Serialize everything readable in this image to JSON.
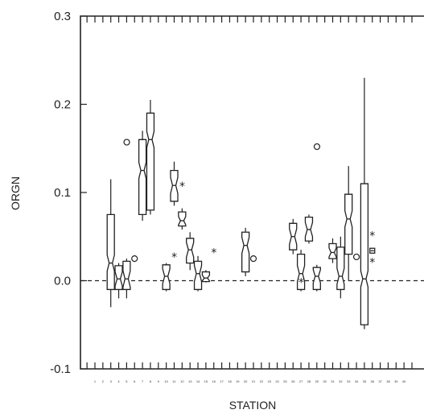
{
  "chart_data": {
    "type": "box",
    "xlabel": "STATION",
    "ylabel": "ORGN",
    "ylim": [
      -0.1,
      0.3
    ],
    "yticks": [
      -0.1,
      0.0,
      0.1,
      0.2,
      0.3
    ],
    "ytick_labels": [
      "-0.1",
      "0.0",
      "0.1",
      "0.2",
      "0.3"
    ],
    "zero_reference_line": true,
    "stations": [
      "1",
      "2",
      "3",
      "4",
      "5",
      "6",
      "7",
      "8",
      "9",
      "10",
      "11",
      "12",
      "13",
      "14",
      "15",
      "16",
      "17",
      "18",
      "19",
      "20",
      "21",
      "22",
      "23",
      "24",
      "25",
      "26",
      "27",
      "28",
      "29",
      "30",
      "31",
      "32",
      "33",
      "34",
      "35",
      "36",
      "37",
      "38",
      "39",
      "40"
    ],
    "boxes": [
      {
        "station": "3",
        "whisker_low": -0.03,
        "q1": -0.01,
        "median": 0.02,
        "q3": 0.075,
        "whisker_high": 0.115
      },
      {
        "station": "4",
        "whisker_low": -0.02,
        "q1": -0.01,
        "median": 0.002,
        "q3": 0.017,
        "whisker_high": 0.02,
        "outliers": [
          {
            "value": 0.157,
            "marker": "circle"
          }
        ]
      },
      {
        "station": "5",
        "whisker_low": -0.02,
        "q1": -0.01,
        "median": 0.002,
        "q3": 0.022,
        "whisker_high": 0.025
      },
      {
        "station": "6",
        "outliers": [
          {
            "value": 0.025,
            "marker": "circle"
          }
        ]
      },
      {
        "station": "7",
        "whisker_low": 0.068,
        "q1": 0.075,
        "median": 0.125,
        "q3": 0.16,
        "whisker_high": 0.17
      },
      {
        "station": "8",
        "whisker_low": 0.075,
        "q1": 0.08,
        "median": 0.16,
        "q3": 0.19,
        "whisker_high": 0.205
      },
      {
        "station": "10",
        "whisker_low": -0.012,
        "q1": -0.01,
        "median": 0.005,
        "q3": 0.018,
        "whisker_high": 0.02,
        "outliers": [
          {
            "value": 0.028,
            "marker": "star"
          }
        ]
      },
      {
        "station": "11",
        "whisker_low": 0.085,
        "q1": 0.09,
        "median": 0.108,
        "q3": 0.125,
        "whisker_high": 0.135,
        "outliers": [
          {
            "value": 0.108,
            "marker": "star"
          }
        ]
      },
      {
        "station": "12",
        "whisker_low": 0.058,
        "q1": 0.062,
        "median": 0.068,
        "q3": 0.078,
        "whisker_high": 0.082
      },
      {
        "station": "13",
        "whisker_low": 0.012,
        "q1": 0.02,
        "median": 0.035,
        "q3": 0.048,
        "whisker_high": 0.055
      },
      {
        "station": "14",
        "whisker_low": -0.012,
        "q1": -0.01,
        "median": 0.008,
        "q3": 0.022,
        "whisker_high": 0.028
      },
      {
        "station": "15",
        "whisker_low": -0.002,
        "q1": -0.001,
        "median": 0.003,
        "q3": 0.01,
        "whisker_high": 0.012,
        "outliers": [
          {
            "value": 0.033,
            "marker": "star"
          }
        ]
      },
      {
        "station": "20",
        "whisker_low": 0.005,
        "q1": 0.01,
        "median": 0.04,
        "q3": 0.055,
        "whisker_high": 0.06
      },
      {
        "station": "21",
        "outliers": [
          {
            "value": 0.025,
            "marker": "circle"
          }
        ]
      },
      {
        "station": "26",
        "whisker_low": 0.03,
        "q1": 0.035,
        "median": 0.05,
        "q3": 0.065,
        "whisker_high": 0.07,
        "outliers": [
          {
            "value": -0.001,
            "marker": "star"
          }
        ]
      },
      {
        "station": "27",
        "whisker_low": -0.012,
        "q1": -0.01,
        "median": 0.008,
        "q3": 0.03,
        "whisker_high": 0.035
      },
      {
        "station": "28",
        "whisker_low": 0.042,
        "q1": 0.045,
        "median": 0.058,
        "q3": 0.072,
        "whisker_high": 0.075,
        "outliers": [
          {
            "value": 0.152,
            "marker": "circle"
          }
        ]
      },
      {
        "station": "29",
        "whisker_low": -0.012,
        "q1": -0.01,
        "median": 0.005,
        "q3": 0.015,
        "whisker_high": 0.018
      },
      {
        "station": "31",
        "whisker_low": 0.02,
        "q1": 0.025,
        "median": 0.032,
        "q3": 0.042,
        "whisker_high": 0.048
      },
      {
        "station": "32",
        "whisker_low": -0.02,
        "q1": -0.01,
        "median": 0.005,
        "q3": 0.038,
        "whisker_high": 0.05
      },
      {
        "station": "33",
        "whisker_low": 0.0,
        "q1": 0.03,
        "median": 0.07,
        "q3": 0.098,
        "whisker_high": 0.13
      },
      {
        "station": "34",
        "outliers": [
          {
            "value": 0.027,
            "marker": "circle"
          }
        ]
      },
      {
        "station": "35",
        "whisker_low": -0.055,
        "q1": -0.05,
        "median": 0.002,
        "q3": 0.11,
        "whisker_high": 0.23
      },
      {
        "station": "36",
        "outliers": [
          {
            "value": 0.052,
            "marker": "star"
          },
          {
            "value": 0.034,
            "marker": "small-box"
          },
          {
            "value": 0.022,
            "marker": "star"
          }
        ]
      }
    ]
  }
}
